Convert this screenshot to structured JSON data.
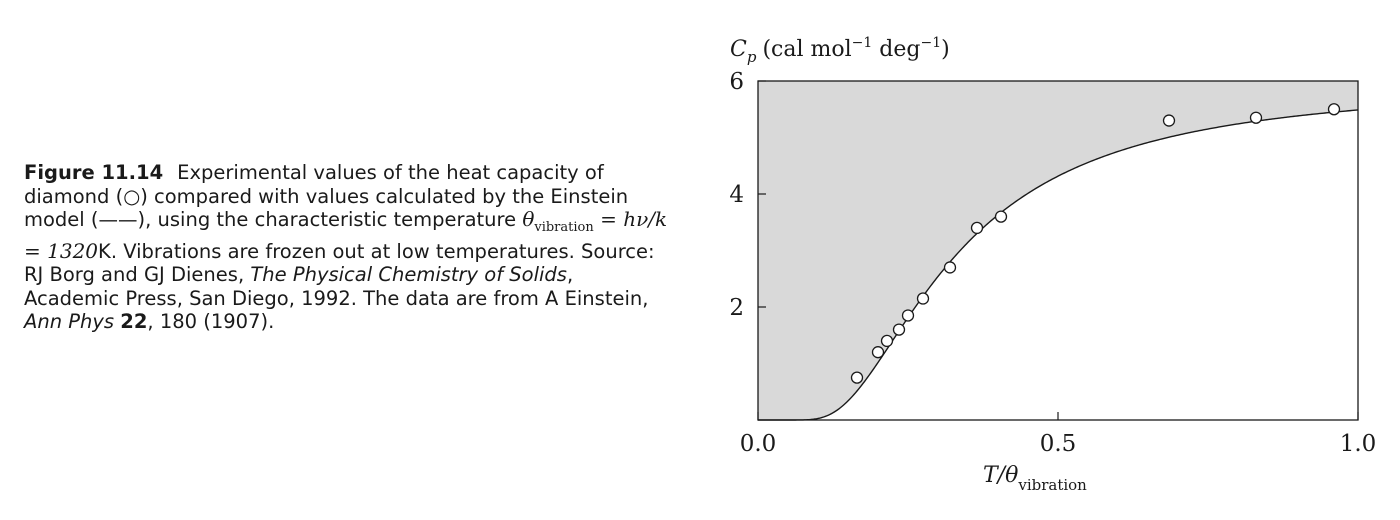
{
  "caption": {
    "figure_label": "Figure 11.14",
    "text_1": "Experimental values of the heat capacity of diamond (○) compared with values calculated by the Einstein model (——), using the characteristic temperature ",
    "theta_symbol": "θ",
    "theta_sub": "vibration",
    "equation": " = hν/k = 1320",
    "unit": "K",
    "text_2": ". Vibrations are frozen out at low temperatures. Source: RJ Borg and GJ Dienes, ",
    "book_title": "The Physical Chemistry of Solids",
    "text_3": ", Academic Press, San Diego, 1992. The data are from A Einstein, ",
    "journal": "Ann Phys",
    "volume": "22",
    "text_4": ", 180 (1907)."
  },
  "chart_data": {
    "type": "scatter",
    "ylabel_main": "C",
    "ylabel_sub": "p",
    "ylabel_units": "(cal mol",
    "ylabel_exp1": "−1",
    "ylabel_deg": " deg",
    "ylabel_exp2": "−1",
    "ylabel_close": ")",
    "xlabel_main": "T/θ",
    "xlabel_sub": "vibration",
    "xlim": [
      0,
      1.0
    ],
    "ylim": [
      0,
      6
    ],
    "x_ticks": [
      0.0,
      0.5,
      1.0
    ],
    "x_tick_labels": [
      "0.0",
      "0.5",
      "1.0"
    ],
    "y_ticks": [
      2,
      4,
      6
    ],
    "y_tick_labels": [
      "2",
      "4",
      "6"
    ],
    "experimental_points": [
      {
        "x": 0.165,
        "y": 0.75
      },
      {
        "x": 0.2,
        "y": 1.2
      },
      {
        "x": 0.215,
        "y": 1.4
      },
      {
        "x": 0.235,
        "y": 1.6
      },
      {
        "x": 0.25,
        "y": 1.85
      },
      {
        "x": 0.275,
        "y": 2.15
      },
      {
        "x": 0.32,
        "y": 2.7
      },
      {
        "x": 0.365,
        "y": 3.4
      },
      {
        "x": 0.405,
        "y": 3.6
      },
      {
        "x": 0.685,
        "y": 5.3
      },
      {
        "x": 0.83,
        "y": 5.35
      },
      {
        "x": 0.96,
        "y": 5.5
      }
    ],
    "model_curve": "einstein",
    "model_asymptote": 5.96,
    "colors": {
      "shading": "#d9d9d9",
      "line": "#1a1a1a",
      "marker_fill": "#ffffff"
    }
  }
}
